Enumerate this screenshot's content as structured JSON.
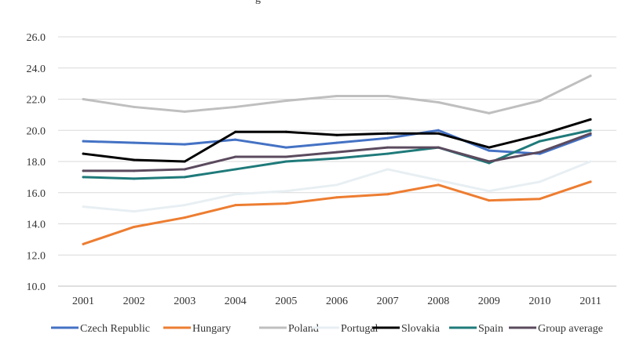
{
  "chart_data": {
    "type": "line",
    "title_fragment": "g",
    "xlabel": "",
    "ylabel": "",
    "x": [
      "2001",
      "2002",
      "2003",
      "2004",
      "2005",
      "2006",
      "2007",
      "2008",
      "2009",
      "2010",
      "2011"
    ],
    "ylim": [
      10,
      26
    ],
    "yticks": [
      10,
      12,
      14,
      16,
      18,
      20,
      22,
      24,
      26
    ],
    "ytick_labels": [
      "10.0",
      "12.0",
      "14.0",
      "16.0",
      "18.0",
      "20.0",
      "22.0",
      "24.0",
      "26.0"
    ],
    "grid": true,
    "legend": "bottom",
    "series": [
      {
        "name": "Czech Republic",
        "color": "#4472c4",
        "values": [
          19.3,
          19.2,
          19.1,
          19.4,
          18.9,
          19.2,
          19.5,
          20.0,
          18.7,
          18.5,
          19.7
        ]
      },
      {
        "name": "Hungary",
        "color": "#ed7d31",
        "values": [
          12.7,
          13.8,
          14.4,
          15.2,
          15.3,
          15.7,
          15.9,
          16.5,
          15.5,
          15.6,
          16.7
        ]
      },
      {
        "name": "Poland",
        "color": "#bfbfbf",
        "values": [
          22.0,
          21.5,
          21.2,
          21.5,
          21.9,
          22.2,
          22.2,
          21.8,
          21.1,
          21.9,
          23.5
        ]
      },
      {
        "name": "Portugal",
        "color": "#e8eff3",
        "values": [
          15.1,
          14.8,
          15.2,
          15.9,
          16.1,
          16.5,
          17.5,
          16.8,
          16.1,
          16.7,
          18.0
        ]
      },
      {
        "name": "Slovakia",
        "color": "#000000",
        "values": [
          18.5,
          18.1,
          18.0,
          19.9,
          19.9,
          19.7,
          19.8,
          19.8,
          18.9,
          19.7,
          20.7
        ]
      },
      {
        "name": "Spain",
        "color": "#1f7a7a",
        "values": [
          17.0,
          16.9,
          17.0,
          17.5,
          18.0,
          18.2,
          18.5,
          18.9,
          17.9,
          19.3,
          20.0
        ]
      },
      {
        "name": "Group average",
        "color": "#5b4a5e",
        "values": [
          17.4,
          17.4,
          17.5,
          18.3,
          18.3,
          18.6,
          18.9,
          18.9,
          18.0,
          18.6,
          19.8
        ]
      }
    ]
  }
}
